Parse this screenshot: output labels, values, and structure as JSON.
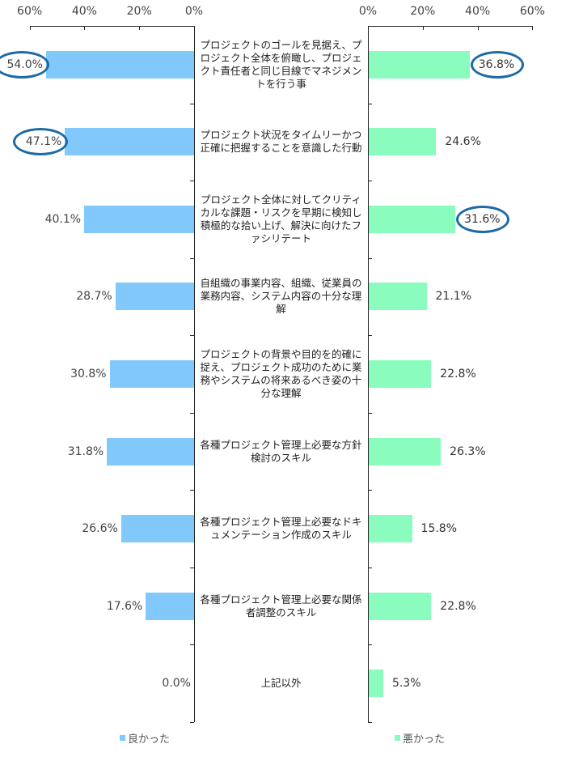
{
  "chart_data": {
    "type": "bar",
    "orientation": "horizontal-butterfly",
    "categories": [
      "プロジェクトのゴールを見据え、プロジェクト全体を俯瞰し、プロジェクト責任者と同じ目線でマネジメントを行う事",
      "プロジェクト状況をタイムリーかつ正確に把握することを意識した行動",
      "プロジェクト全体に対してクリティカルな課題・リスクを早期に検知し積極的な拾い上げ、解決に向けたファシリテート",
      "自組織の事業内容、組織、従業員の業務内容、システム内容の十分な理解",
      "プロジェクトの背景や目的を的確に捉え、プロジェクト成功のために業務やシステムの将来あるべき姿の十分な理解",
      "各種プロジェクト管理上必要な方針検討のスキル",
      "各種プロジェクト管理上必要なドキュメンテーション作成のスキル",
      "各種プロジェクト管理上必要な関係者調整のスキル",
      "上記以外"
    ],
    "series": [
      {
        "name": "良かった",
        "color": "#82c9fb",
        "side": "left",
        "values": [
          54.0,
          47.1,
          40.1,
          28.7,
          30.8,
          31.8,
          26.6,
          17.6,
          0.0
        ],
        "labels": [
          "54.0%",
          "47.1%",
          "40.1%",
          "28.7%",
          "30.8%",
          "31.8%",
          "26.6%",
          "17.6%",
          "0.0%"
        ],
        "highlighted": [
          true,
          true,
          false,
          false,
          false,
          false,
          false,
          false,
          false
        ]
      },
      {
        "name": "悪かった",
        "color": "#89fcbe",
        "side": "right",
        "values": [
          36.8,
          24.6,
          31.6,
          21.1,
          22.8,
          26.3,
          15.8,
          22.8,
          5.3
        ],
        "labels": [
          "36.8%",
          "24.6%",
          "31.6%",
          "21.1%",
          "22.8%",
          "26.3%",
          "15.8%",
          "22.8%",
          "5.3%"
        ],
        "highlighted": [
          true,
          false,
          true,
          false,
          false,
          false,
          false,
          false,
          false
        ]
      }
    ],
    "left_axis": {
      "ticks": [
        "60%",
        "40%",
        "20%",
        "0%"
      ],
      "range": [
        60,
        0
      ],
      "reversed": true
    },
    "right_axis": {
      "ticks": [
        "0%",
        "20%",
        "40%",
        "60%"
      ],
      "range": [
        0,
        60
      ]
    },
    "title": "",
    "xlabel": "",
    "ylabel": "",
    "grid": false,
    "legend_position": "bottom",
    "highlight_color": "#1d6aa5"
  },
  "legend": {
    "left": {
      "label": "良かった",
      "color": "#82c9fb"
    },
    "right": {
      "label": "悪かった",
      "color": "#89fcbe"
    }
  }
}
